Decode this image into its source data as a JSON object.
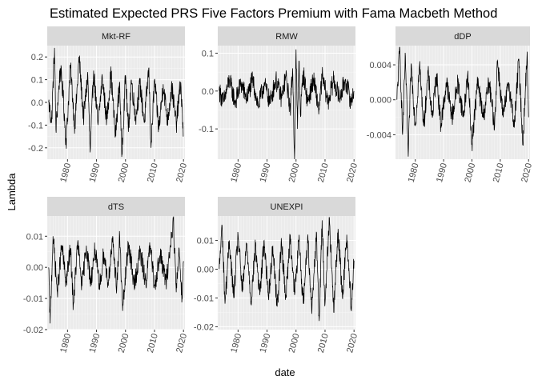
{
  "chart_data": {
    "type": "line",
    "title": "Estimated Expected PRS Five Factors Premium with Fama Macbeth Method",
    "xlabel": "date",
    "ylabel": "Lambda",
    "x_range": [
      1973,
      2020.5
    ],
    "x_ticks": [
      1980,
      1990,
      2000,
      2010,
      2020
    ],
    "x_tick_labels": [
      "1980",
      "1990",
      "2000",
      "2010",
      "2020"
    ],
    "grid": true,
    "layout": "facet_wrap 3 columns, free y scales",
    "facets": [
      {
        "name": "Mkt-RF",
        "ylim": [
          -0.25,
          0.25
        ],
        "y_ticks": [
          -0.2,
          -0.1,
          0.0,
          0.1,
          0.2
        ],
        "y_tick_labels": [
          "-0.2",
          "-0.1",
          "0.0",
          "0.1",
          "0.2"
        ],
        "x": [
          1973.5,
          1974.5,
          1975.5,
          1976.0,
          1977.5,
          1978.5,
          1979.5,
          1981.0,
          1982.5,
          1984.0,
          1985.5,
          1987.0,
          1987.8,
          1989.0,
          1990.5,
          1992.0,
          1993.5,
          1995.0,
          1996.5,
          1998.0,
          1998.7,
          2000.0,
          2001.0,
          2002.0,
          2003.5,
          2005.0,
          2006.5,
          2008.0,
          2008.8,
          2010.0,
          2011.5,
          2013.0,
          2014.5,
          2016.0,
          2017.5,
          2019.0,
          2020.0
        ],
        "values": [
          0.0,
          -0.09,
          0.24,
          -0.12,
          0.15,
          0.03,
          -0.18,
          0.16,
          -0.11,
          0.2,
          -0.07,
          0.12,
          -0.22,
          0.14,
          -0.1,
          0.11,
          -0.08,
          0.13,
          -0.15,
          0.09,
          -0.24,
          0.12,
          -0.13,
          0.1,
          -0.07,
          0.08,
          -0.09,
          0.15,
          -0.2,
          0.1,
          -0.12,
          0.08,
          -0.08,
          0.07,
          -0.1,
          0.09,
          -0.15
        ]
      },
      {
        "name": "RMW",
        "ylim": [
          -0.18,
          0.12
        ],
        "y_ticks": [
          -0.1,
          0.0,
          0.1
        ],
        "y_tick_labels": [
          "-0.1",
          "0.0",
          "0.1"
        ],
        "x": [
          1973.5,
          1975.0,
          1977.0,
          1979.0,
          1981.0,
          1983.0,
          1985.0,
          1987.0,
          1989.0,
          1991.0,
          1993.0,
          1995.0,
          1996.5,
          1998.0,
          1998.8,
          1999.5,
          2000.0,
          2000.5,
          2001.0,
          2001.5,
          2002.5,
          2004.0,
          2006.0,
          2008.0,
          2009.0,
          2011.0,
          2013.0,
          2015.0,
          2017.0,
          2019.0,
          2020.0
        ],
        "values": [
          0.0,
          -0.03,
          0.03,
          -0.03,
          0.02,
          -0.02,
          0.03,
          -0.04,
          0.02,
          -0.03,
          0.03,
          -0.02,
          0.04,
          -0.05,
          0.06,
          -0.18,
          0.11,
          -0.1,
          0.08,
          -0.06,
          0.05,
          -0.03,
          0.03,
          -0.05,
          0.04,
          -0.03,
          0.03,
          -0.02,
          0.03,
          -0.03,
          0.0
        ]
      },
      {
        "name": "dDP",
        "ylim": [
          -0.0068,
          0.0062
        ],
        "y_ticks": [
          -0.004,
          0.0,
          0.004
        ],
        "y_tick_labels": [
          "-0.004",
          "0.000",
          "0.004"
        ],
        "x": [
          1973.5,
          1974.5,
          1975.5,
          1976.5,
          1977.5,
          1978.5,
          1980.0,
          1981.5,
          1983.0,
          1984.5,
          1986.0,
          1987.5,
          1989.0,
          1991.0,
          1993.0,
          1995.0,
          1997.0,
          1998.5,
          2000.0,
          2002.0,
          2004.0,
          2006.0,
          2008.0,
          2009.0,
          2011.0,
          2013.0,
          2015.0,
          2016.5,
          2018.0,
          2019.5,
          2020.0
        ],
        "values": [
          0.0,
          0.006,
          -0.004,
          0.005,
          -0.0065,
          0.004,
          -0.003,
          0.004,
          -0.003,
          0.003,
          -0.002,
          0.003,
          -0.003,
          0.002,
          -0.002,
          0.002,
          -0.002,
          0.003,
          -0.005,
          0.002,
          -0.002,
          0.002,
          -0.003,
          0.0045,
          -0.002,
          0.002,
          -0.003,
          0.0045,
          -0.005,
          0.0055,
          -0.002
        ]
      },
      {
        "name": "dTS",
        "ylim": [
          -0.02,
          0.0165
        ],
        "y_ticks": [
          -0.02,
          -0.01,
          0.0,
          0.01
        ],
        "y_tick_labels": [
          "-0.02",
          "-0.01",
          "0.00",
          "0.01"
        ],
        "x": [
          1973.5,
          1974.0,
          1975.0,
          1976.5,
          1978.0,
          1979.5,
          1981.0,
          1982.0,
          1983.5,
          1985.0,
          1986.5,
          1988.0,
          1989.5,
          1991.0,
          1992.5,
          1994.0,
          1995.5,
          1997.0,
          1998.0,
          1999.0,
          2001.0,
          2003.0,
          2005.0,
          2007.0,
          2008.5,
          2010.0,
          2012.0,
          2014.0,
          2015.5,
          2016.5,
          2017.5,
          2018.5,
          2019.5,
          2020.0
        ],
        "values": [
          0.0,
          -0.018,
          0.01,
          -0.008,
          0.007,
          -0.005,
          0.006,
          -0.012,
          0.008,
          -0.006,
          0.007,
          -0.005,
          0.006,
          -0.007,
          0.005,
          -0.005,
          0.008,
          -0.006,
          0.01,
          -0.014,
          0.008,
          -0.006,
          0.005,
          -0.005,
          0.007,
          -0.006,
          0.004,
          -0.005,
          0.007,
          0.0155,
          -0.008,
          0.006,
          -0.01,
          0.002
        ]
      },
      {
        "name": "UNEXPI",
        "ylim": [
          -0.021,
          0.0185
        ],
        "y_ticks": [
          -0.02,
          -0.01,
          0.0,
          0.01
        ],
        "y_tick_labels": [
          "-0.02",
          "-0.01",
          "0.00",
          "0.01"
        ],
        "x": [
          1973.5,
          1974.5,
          1975.5,
          1977.0,
          1978.5,
          1980.0,
          1981.5,
          1983.0,
          1984.5,
          1986.0,
          1987.5,
          1989.0,
          1990.5,
          1992.0,
          1993.5,
          1995.0,
          1996.5,
          1998.0,
          1999.5,
          2001.0,
          2002.5,
          2004.0,
          2005.5,
          2007.0,
          2008.0,
          2009.0,
          2010.0,
          2011.5,
          2013.0,
          2014.5,
          2016.0,
          2017.5,
          2019.0,
          2020.0
        ],
        "values": [
          0.0,
          0.015,
          -0.012,
          0.01,
          -0.01,
          0.012,
          -0.008,
          0.009,
          -0.011,
          0.008,
          -0.009,
          0.01,
          -0.01,
          0.008,
          -0.013,
          0.009,
          -0.01,
          0.012,
          -0.009,
          0.01,
          -0.012,
          0.011,
          -0.014,
          0.013,
          -0.018,
          0.017,
          -0.012,
          0.018,
          -0.015,
          0.014,
          -0.01,
          0.012,
          -0.013,
          0.003
        ]
      }
    ]
  }
}
